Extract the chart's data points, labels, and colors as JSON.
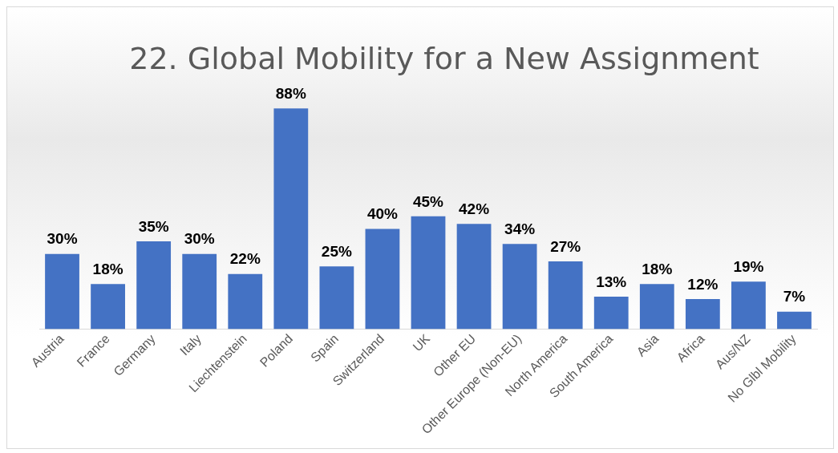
{
  "chart_data": {
    "type": "bar",
    "title": "22. Global Mobility for a New Assignment",
    "categories": [
      "Austria",
      "France",
      "Germany",
      "Italy",
      "Liechtenstein",
      "Poland",
      "Spain",
      "Switzerland",
      "UK",
      "Other EU",
      "Other Europe (Non-EU)",
      "North America",
      "South America",
      "Asia",
      "Africa",
      "Aus/NZ",
      "No Glbl Mobility"
    ],
    "values": [
      30,
      18,
      35,
      30,
      22,
      88,
      25,
      40,
      45,
      42,
      34,
      27,
      13,
      18,
      12,
      19,
      7
    ],
    "value_labels": [
      "30%",
      "18%",
      "35%",
      "30%",
      "22%",
      "88%",
      "25%",
      "40%",
      "45%",
      "42%",
      "34%",
      "27%",
      "13%",
      "18%",
      "12%",
      "19%",
      "7%"
    ],
    "color": "#4472c4",
    "tick_labels": "x",
    "grid": false,
    "legend": false
  }
}
